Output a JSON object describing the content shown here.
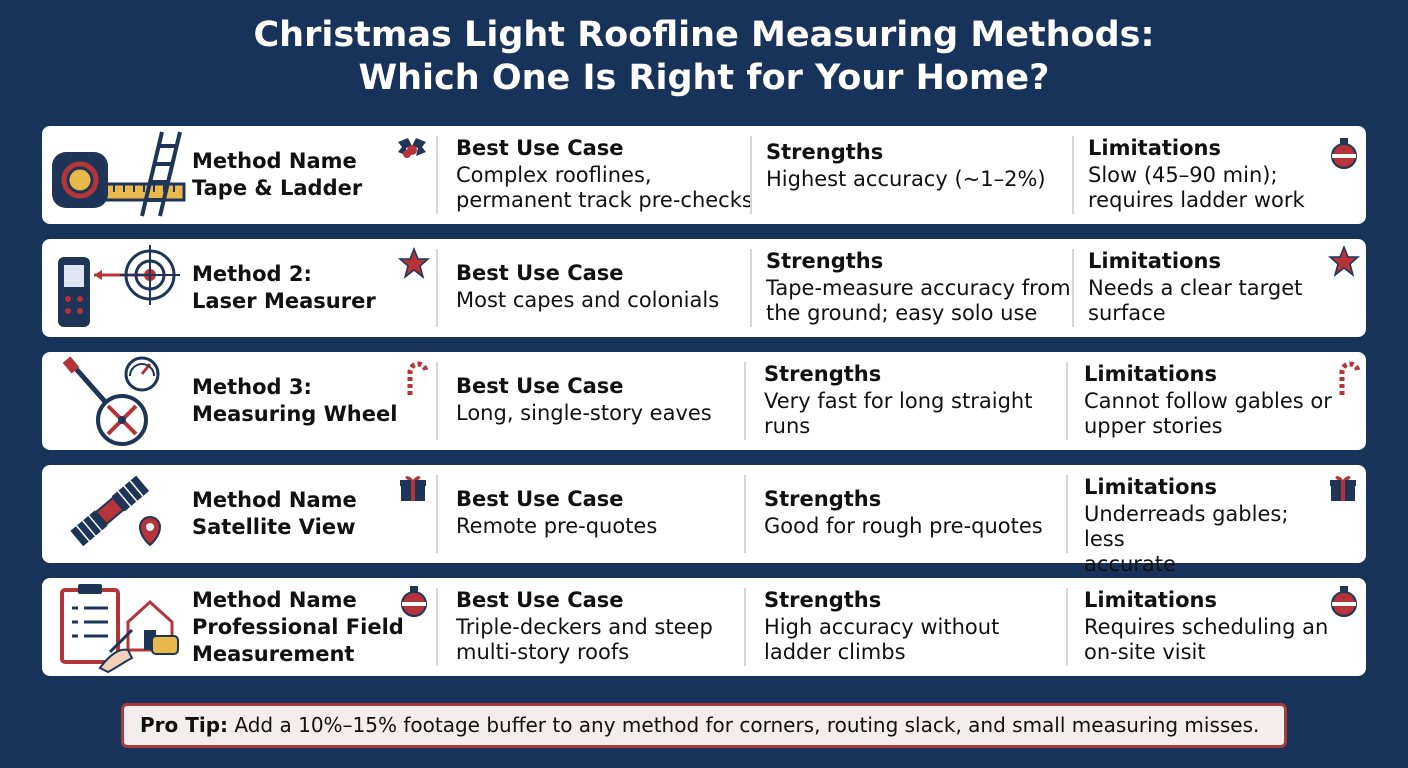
{
  "title": {
    "line1": "Christmas Light Roofline Measuring Methods:",
    "line2": "Which One Is Right for Your Home?"
  },
  "headers": {
    "best": "Best Use Case",
    "strengths": "Strengths",
    "limitations": "Limitations"
  },
  "rows": [
    {
      "method_line1": "Method Name",
      "method_line2": "Tape & Ladder",
      "method_line3": "",
      "icon": "tape-ladder-icon",
      "deco_icon": "holly-icon",
      "best": "Complex rooflines,\npermanent track pre-checks",
      "strengths": "Highest accuracy (~1–2%)",
      "limitations": "Slow (45–90 min);\nrequires ladder work",
      "right_deco": "ornament-icon"
    },
    {
      "method_line1": "Method 2:",
      "method_line2": "Laser Measurer",
      "method_line3": "",
      "icon": "laser-measurer-icon",
      "deco_icon": "star-icon",
      "best": "Most capes and colonials",
      "strengths": "Tape-measure accuracy from\nthe ground; easy solo use",
      "limitations": "Needs a clear target\nsurface",
      "right_deco": "star-icon"
    },
    {
      "method_line1": "Method 3:",
      "method_line2": "Measuring Wheel",
      "method_line3": "",
      "icon": "measuring-wheel-icon",
      "deco_icon": "candy-cane-icon",
      "best": "Long, single-story eaves",
      "strengths": "Very fast for long straight\nruns",
      "limitations": "Cannot follow gables or\nupper stories",
      "right_deco": "candy-cane-icon"
    },
    {
      "method_line1": "Method Name",
      "method_line2": "Satellite View",
      "method_line3": "",
      "icon": "satellite-icon",
      "deco_icon": "gift-icon",
      "best": "Remote pre-quotes",
      "strengths": "Good for rough pre-quotes",
      "limitations": "Underreads gables; less\naccurate",
      "right_deco": "gift-icon"
    },
    {
      "method_line1": "Method Name",
      "method_line2": "Professional Field",
      "method_line3": "Measurement",
      "icon": "clipboard-house-icon",
      "deco_icon": "ornament-icon",
      "best": "Triple-deckers and steep\nmulti-story roofs",
      "strengths": "High accuracy without\nladder climbs",
      "limitations": "Requires scheduling an\non-site visit",
      "right_deco": "ornament-icon"
    }
  ],
  "tip": {
    "label": "Pro Tip:",
    "text": " Add a 10%–15% footage buffer to any method for corners, routing slack, and small measuring misses."
  },
  "colors": {
    "background": "#17335a",
    "accent": "#b4343a",
    "navy": "#1e3557",
    "gold": "#e9b84a"
  }
}
